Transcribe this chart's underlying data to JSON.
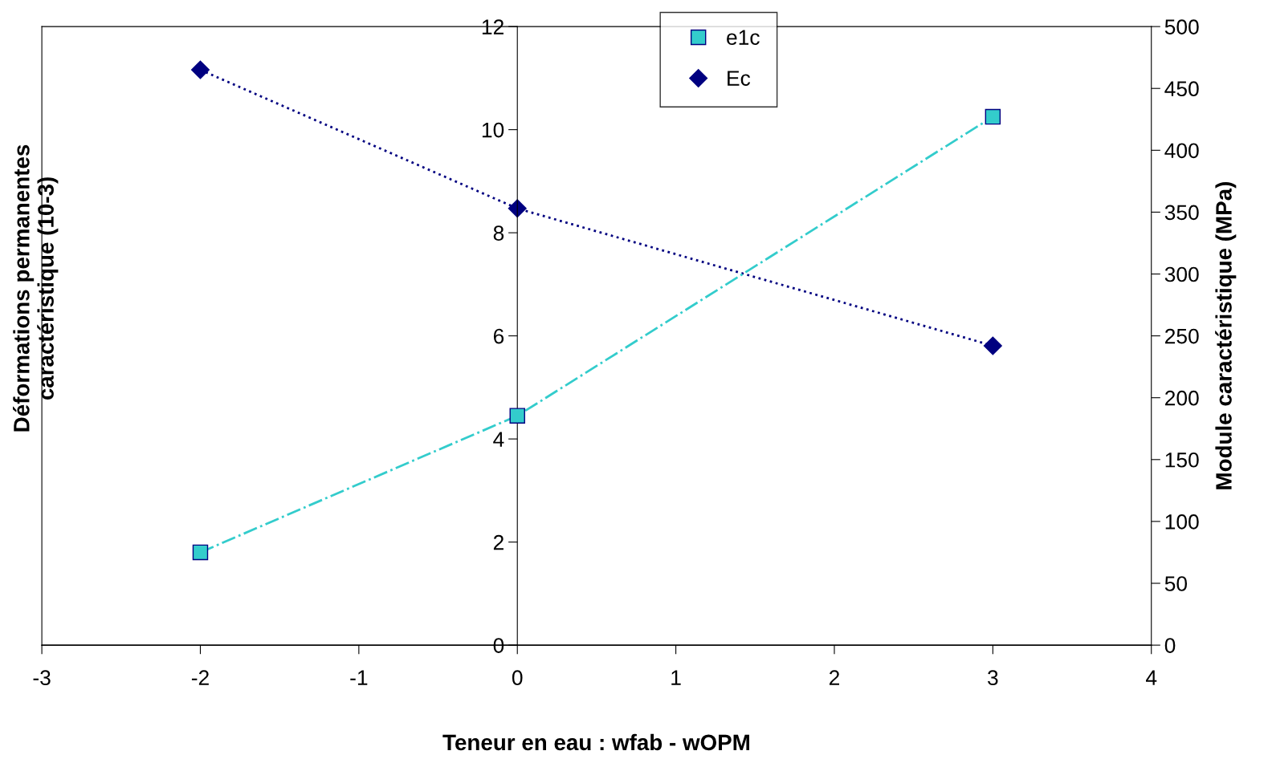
{
  "chart_data": {
    "type": "line",
    "xlabel": "Teneur en eau : wfab - wOPM",
    "ylabel": "Déformations permanentes\ncaractéristique (10-3)",
    "y2label": "Module caractéristique (MPa)",
    "x": [
      -2,
      0,
      3
    ],
    "series": [
      {
        "name": "e1c",
        "color": "#33cccc",
        "values": [
          1.8,
          4.45,
          10.25
        ],
        "marker": "square",
        "line_style": "dashdot"
      },
      {
        "name": "Ec",
        "color": "#000080",
        "values": [
          465,
          353,
          242
        ],
        "axis": "y2",
        "marker": "diamond",
        "line_style": "dotted"
      }
    ],
    "xlim": [
      -3,
      4
    ],
    "xticks": [
      -3,
      -2,
      -1,
      0,
      1,
      2,
      3,
      4
    ],
    "ylim": [
      0,
      12
    ],
    "yticks": [
      0,
      2,
      4,
      6,
      8,
      10,
      12
    ],
    "y2lim": [
      0,
      500
    ],
    "y2ticks": [
      0,
      50,
      100,
      150,
      200,
      250,
      300,
      350,
      400,
      450,
      500
    ],
    "grid": false,
    "legend": "top"
  }
}
